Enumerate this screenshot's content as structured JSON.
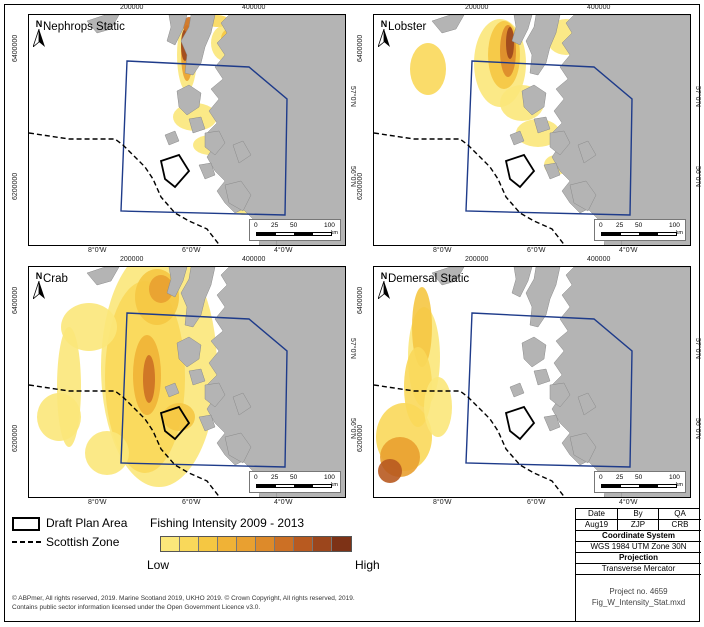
{
  "panels": [
    {
      "title": "Nephrops Static"
    },
    {
      "title": "Lobster"
    },
    {
      "title": "Crab"
    },
    {
      "title": "Demersal Static"
    }
  ],
  "map_ticks": {
    "top": [
      "200000",
      "400000"
    ],
    "bottom": [
      "8°0'W",
      "6°0'W",
      "4°0'W"
    ],
    "left": [
      "6400000",
      "6200000"
    ],
    "right": [
      "57°0'N",
      "56°0'N"
    ]
  },
  "north_label": "N",
  "scalebar": {
    "labels": [
      "0",
      "25",
      "50",
      "100"
    ],
    "unit": "km"
  },
  "legend": {
    "draft_plan_area": "Draft Plan Area",
    "scottish_zone": "Scottish Zone",
    "intensity_title": "Fishing Intensity 2009 - 2013",
    "low": "Low",
    "high": "High",
    "ramp_colors": [
      "#fbe77a",
      "#f9d85a",
      "#f5c742",
      "#f0b236",
      "#e9a030",
      "#dd8a2a",
      "#cc7025",
      "#b85a20",
      "#9c461c",
      "#7d3216"
    ]
  },
  "info": {
    "date_label": "Date",
    "by_label": "By",
    "qa_label": "QA",
    "date": "Aug19",
    "by": "ZJP",
    "qa": "CRB",
    "coord_sys_label": "Coordinate System",
    "coord_sys": "WGS 1984 UTM Zone 30N",
    "projection_label": "Projection",
    "projection": "Transverse Mercator",
    "project_no": "Project no. 4659",
    "file_name": "Fig_W_Intensity_Stat.mxd"
  },
  "credits": [
    "© ABPmer, All rights reserved, 2019. Marine Scotland 2019, UKHO 2019. © Crown Copyright, All rights reserved, 2019.",
    "Contains public sector information licensed under the Open Government Licence v3.0."
  ],
  "colors": {
    "land": "#b4b4b4",
    "plan_boundary": "#1e3b8a",
    "sea": "#ffffff"
  }
}
